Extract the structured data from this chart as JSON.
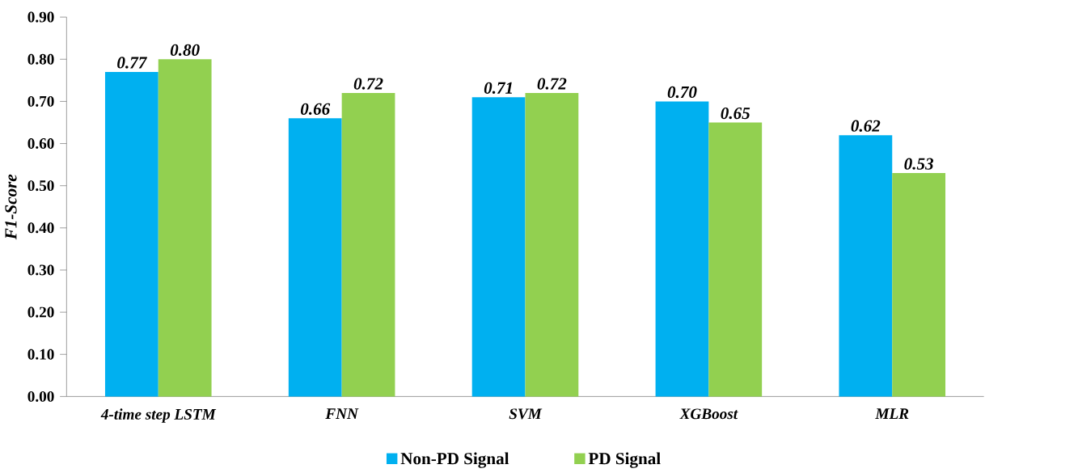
{
  "chart_data": {
    "type": "bar",
    "ylabel": "F1-Score",
    "categories": [
      "4-time step LSTM",
      "FNN",
      "SVM",
      "XGBoost",
      "MLR"
    ],
    "series": [
      {
        "name": "Non-PD Signal",
        "color": "#00b0f0",
        "values": [
          0.77,
          0.66,
          0.71,
          0.7,
          0.62
        ],
        "value_labels": [
          "0.77",
          "0.66",
          "0.71",
          "0.70",
          "0.62"
        ]
      },
      {
        "name": "PD Signal",
        "color": "#92d050",
        "values": [
          0.8,
          0.72,
          0.72,
          0.65,
          0.53
        ],
        "value_labels": [
          "0.80",
          "0.72",
          "0.72",
          "0.65",
          "0.53"
        ]
      }
    ],
    "ylim": [
      0,
      0.9
    ],
    "yticks": [
      {
        "value": 0,
        "label": "0.00"
      },
      {
        "value": 0.1,
        "label": "0.10"
      },
      {
        "value": 0.2,
        "label": "0.20"
      },
      {
        "value": 0.3,
        "label": "0.30"
      },
      {
        "value": 0.4,
        "label": "0.40"
      },
      {
        "value": 0.5,
        "label": "0.50"
      },
      {
        "value": 0.6,
        "label": "0.60"
      },
      {
        "value": 0.7,
        "label": "0.70"
      },
      {
        "value": 0.8,
        "label": "0.80"
      },
      {
        "value": 0.9,
        "label": "0.90"
      }
    ],
    "grid": false,
    "legend": "bottom"
  }
}
